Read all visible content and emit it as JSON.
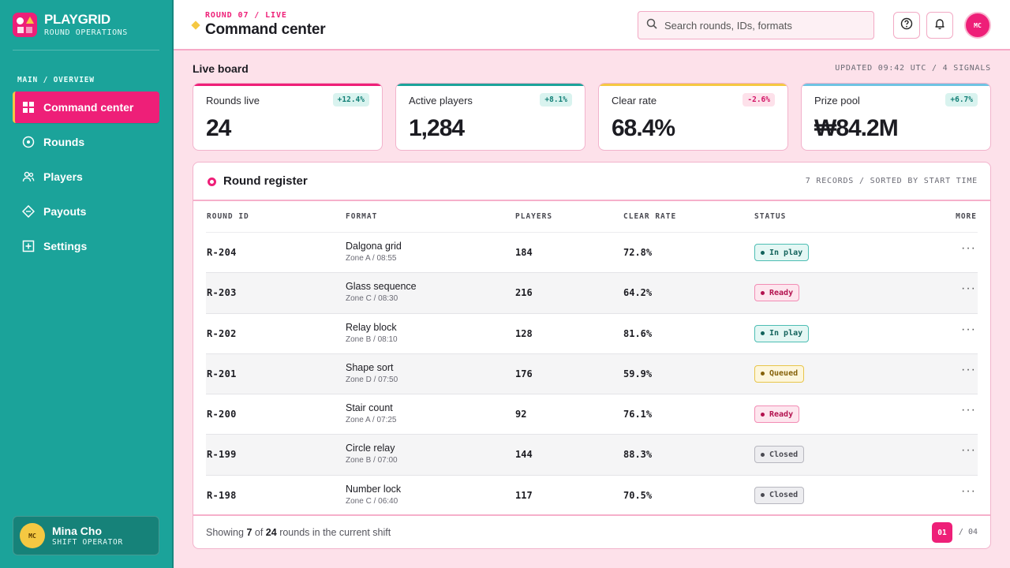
{
  "brand": {
    "name": "PLAYGRID",
    "subtitle": "ROUND OPERATIONS"
  },
  "nav": {
    "caption": "MAIN / OVERVIEW",
    "items": [
      {
        "label": "Command center",
        "icon": "grid-icon",
        "active": true
      },
      {
        "label": "Rounds",
        "icon": "target-icon"
      },
      {
        "label": "Players",
        "icon": "users-icon"
      },
      {
        "label": "Payouts",
        "icon": "diamond-icon"
      },
      {
        "label": "Settings",
        "icon": "plus-square-icon"
      }
    ]
  },
  "profile": {
    "initials": "MC",
    "name": "Mina Cho",
    "role": "SHIFT OPERATOR"
  },
  "header": {
    "crumb": "ROUND 07 / LIVE",
    "title": "Command center",
    "search_placeholder": "Search rounds, IDs, formats",
    "avatar_initials": "MC"
  },
  "board": {
    "title": "Live board",
    "meta": "UPDATED 09:42 UTC / 4 SIGNALS",
    "kpis": [
      {
        "label": "Rounds live",
        "value": "24",
        "delta": "+12.4%",
        "trend": "up",
        "color": "#ee1f78"
      },
      {
        "label": "Active players",
        "value": "1,284",
        "delta": "+8.1%",
        "trend": "up",
        "color": "#1ba39a"
      },
      {
        "label": "Clear rate",
        "value": "68.4%",
        "delta": "-2.6%",
        "trend": "down",
        "color": "#f5c842"
      },
      {
        "label": "Prize pool",
        "value": "₩84.2M",
        "delta": "+6.7%",
        "trend": "up",
        "color": "#6fc3e3"
      }
    ]
  },
  "register": {
    "title": "Round register",
    "meta": "7 RECORDS / SORTED BY START TIME",
    "columns": [
      "ROUND ID",
      "FORMAT",
      "PLAYERS",
      "CLEAR RATE",
      "STATUS",
      "MORE"
    ],
    "rows": [
      {
        "id": "R-204",
        "format": "Dalgona grid",
        "sub": "Zone A / 08:55",
        "players": "184",
        "clear": "72.8%",
        "status": "In play",
        "kind": "inplay"
      },
      {
        "id": "R-203",
        "format": "Glass sequence",
        "sub": "Zone C / 08:30",
        "players": "216",
        "clear": "64.2%",
        "status": "Ready",
        "kind": "ready"
      },
      {
        "id": "R-202",
        "format": "Relay block",
        "sub": "Zone B / 08:10",
        "players": "128",
        "clear": "81.6%",
        "status": "In play",
        "kind": "inplay"
      },
      {
        "id": "R-201",
        "format": "Shape sort",
        "sub": "Zone D / 07:50",
        "players": "176",
        "clear": "59.9%",
        "status": "Queued",
        "kind": "queued"
      },
      {
        "id": "R-200",
        "format": "Stair count",
        "sub": "Zone A / 07:25",
        "players": "92",
        "clear": "76.1%",
        "status": "Ready",
        "kind": "ready"
      },
      {
        "id": "R-199",
        "format": "Circle relay",
        "sub": "Zone B / 07:00",
        "players": "144",
        "clear": "88.3%",
        "status": "Closed",
        "kind": "closed"
      },
      {
        "id": "R-198",
        "format": "Number lock",
        "sub": "Zone C / 06:40",
        "players": "117",
        "clear": "70.5%",
        "status": "Closed",
        "kind": "closed"
      }
    ],
    "footer": {
      "prefix": "Showing",
      "shown": "7",
      "of": "of",
      "total": "24",
      "suffix": "rounds in the current shift"
    },
    "pagination": {
      "current": "01",
      "total": "/ 04"
    }
  }
}
